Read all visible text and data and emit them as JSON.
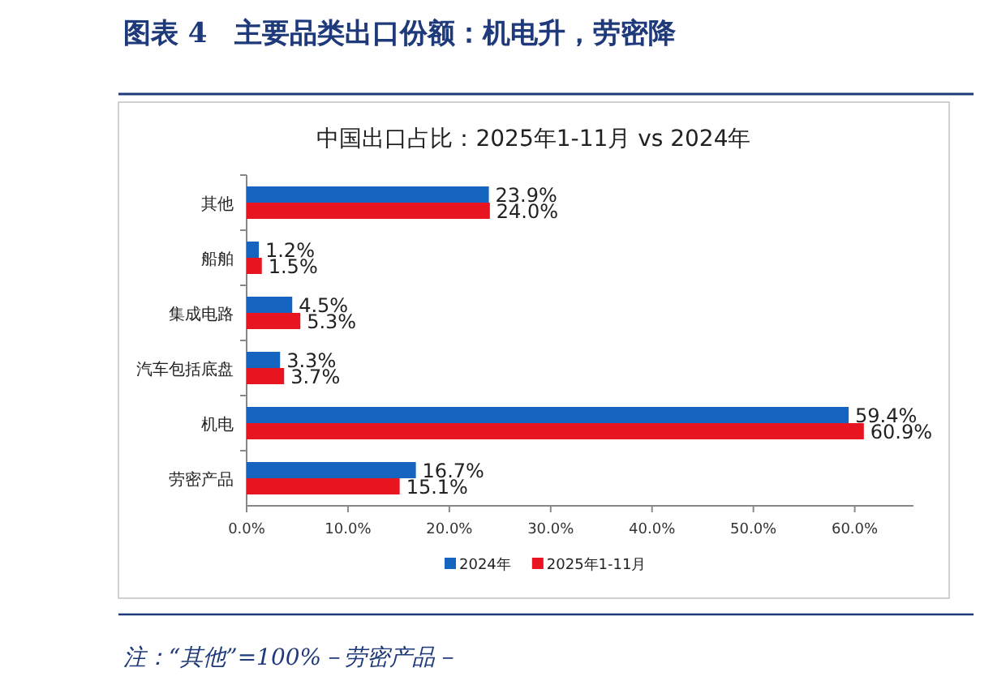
{
  "chart_data": {
    "type": "bar",
    "orientation": "horizontal",
    "title": "图表 4　主要品类出口份额：机电升，劳密降",
    "subtitle": "中国出口占比：2025年1-11月 vs 2024年",
    "categories": [
      "其他",
      "船舶",
      "集成电路",
      "汽车包括底盘",
      "机电",
      "劳密产品"
    ],
    "series": [
      {
        "name": "2024年",
        "color": "#1565c0",
        "values": [
          23.9,
          1.2,
          4.5,
          3.3,
          59.4,
          16.7
        ],
        "value_labels": [
          "23.9%",
          "1.2%",
          "4.5%",
          "3.3%",
          "59.4%",
          "16.7%"
        ]
      },
      {
        "name": "2025年1-11月",
        "color": "#e8141f",
        "values": [
          24.0,
          1.5,
          5.3,
          3.7,
          60.9,
          15.1
        ],
        "value_labels": [
          "24.0%",
          "1.5%",
          "5.3%",
          "3.7%",
          "60.9%",
          "15.1%"
        ]
      }
    ],
    "xlim": [
      0,
      65.8
    ],
    "xticks": [
      {
        "value": 0,
        "label": "0.0%"
      },
      {
        "value": 10,
        "label": "10.0%"
      },
      {
        "value": 20,
        "label": "20.0%"
      },
      {
        "value": 30,
        "label": "30.0%"
      },
      {
        "value": 40,
        "label": "40.0%"
      },
      {
        "value": 50,
        "label": "50.0%"
      },
      {
        "value": 60,
        "label": "60.0%"
      }
    ],
    "legend": "bottom",
    "annotations": [
      "注：“其他”=100%－劳密产品－"
    ]
  }
}
